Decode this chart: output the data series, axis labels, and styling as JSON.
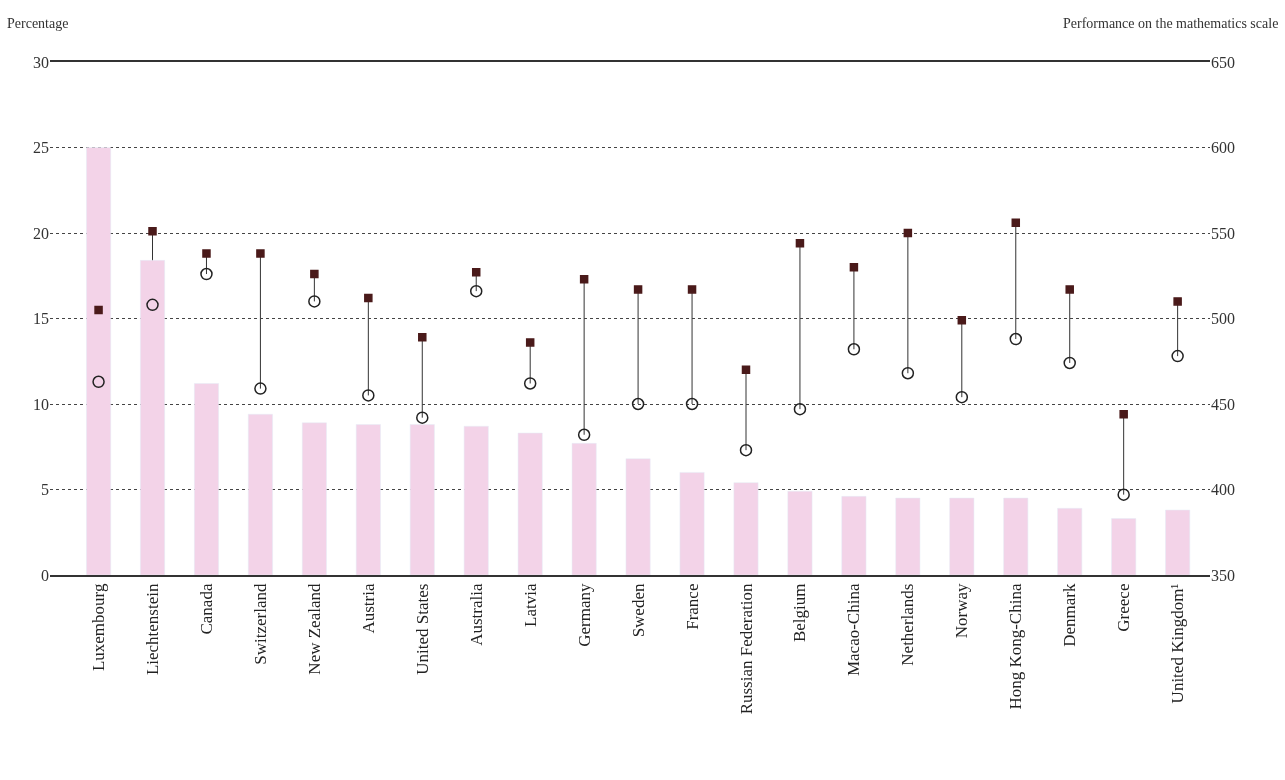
{
  "chart_data": {
    "type": "bar",
    "ylabel": "Percentage",
    "y2label": "Performance on the mathematics scale",
    "categories": [
      "Luxembourg",
      "Liechtenstein",
      "Canada",
      "Switzerland",
      "New Zealand",
      "Austria",
      "United States",
      "Australia",
      "Latvia",
      "Germany",
      "Sweden",
      "France",
      "Russian Federation",
      "Belgium",
      "Macao-China",
      "Netherlands",
      "Norway",
      "Hong Kong-China",
      "Denmark",
      "Greece",
      "United Kingdom¹"
    ],
    "series": [
      {
        "color": "#f3d3e8",
        "values": [
          25.0,
          18.4,
          11.2,
          9.4,
          8.9,
          8.8,
          8.8,
          8.7,
          8.3,
          7.7,
          6.8,
          6.0,
          5.4,
          4.9,
          4.6,
          4.5,
          4.5,
          4.5,
          3.9,
          3.3,
          3.8
        ]
      },
      {
        "type": "scatter",
        "axis": "y2",
        "marker": "square",
        "color": "#4a1a1a",
        "values": [
          505,
          551,
          538,
          538,
          526,
          512,
          489,
          527,
          486,
          523,
          517,
          517,
          470,
          544,
          530,
          550,
          499,
          556,
          517,
          444,
          510
        ]
      },
      {
        "type": "scatter",
        "axis": "y2",
        "marker": "circle",
        "color": "#222222",
        "values": [
          463,
          508,
          526,
          459,
          510,
          455,
          442,
          516,
          462,
          432,
          450,
          450,
          423,
          447,
          482,
          468,
          454,
          488,
          474,
          397,
          478
        ]
      }
    ],
    "ylim": [
      0,
      30
    ],
    "yticks": [
      0,
      5,
      10,
      15,
      20,
      25,
      30
    ],
    "y2lim": [
      350,
      650
    ],
    "y2ticks": [
      350,
      400,
      450,
      500,
      550,
      600,
      650
    ],
    "grid": "y",
    "legend": false
  }
}
